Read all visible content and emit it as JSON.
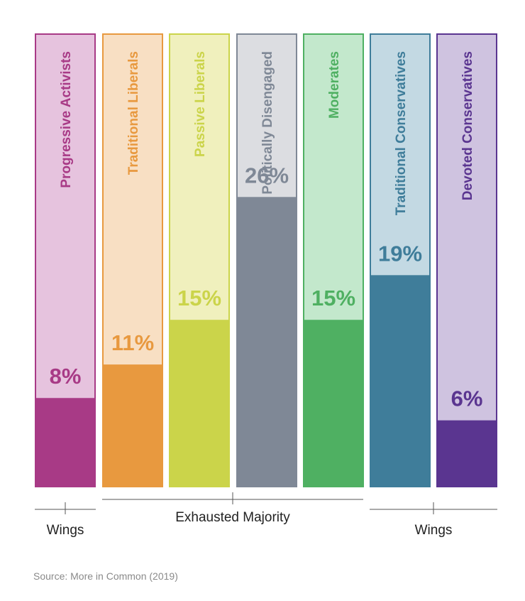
{
  "chart_data": {
    "type": "bar",
    "ylim": [
      0,
      100
    ],
    "unit": "%",
    "segments": [
      {
        "name": "Progressive Activists",
        "value": 8,
        "label": "8%",
        "color": "#a83a86",
        "light": "#e6c3de"
      },
      {
        "name": "Traditional Liberals",
        "value": 11,
        "label": "11%",
        "color": "#e8993f",
        "light": "#f8dfc3"
      },
      {
        "name": "Passive Liberals",
        "value": 15,
        "label": "15%",
        "color": "#cbd44a",
        "light": "#f0f0bd"
      },
      {
        "name": "Politically Disengaged",
        "value": 26,
        "label": "26%",
        "color": "#7f8896",
        "light": "#dcdde1"
      },
      {
        "name": "Moderates",
        "value": 15,
        "label": "15%",
        "color": "#4fb062",
        "light": "#c3e8cc"
      },
      {
        "name": "Traditional Conservatives",
        "value": 19,
        "label": "19%",
        "color": "#3f7d9a",
        "light": "#c3d9e3"
      },
      {
        "name": "Devoted Conservatives",
        "value": 6,
        "label": "6%",
        "color": "#5a3590",
        "light": "#cfc3e0"
      }
    ],
    "groups": [
      {
        "label": "Wings",
        "from": 0,
        "to": 0
      },
      {
        "label": "Exhausted Majority",
        "from": 1,
        "to": 4
      },
      {
        "label": "Wings",
        "from": 5,
        "to": 6
      }
    ]
  },
  "source": "Source: More in Common (2019)"
}
